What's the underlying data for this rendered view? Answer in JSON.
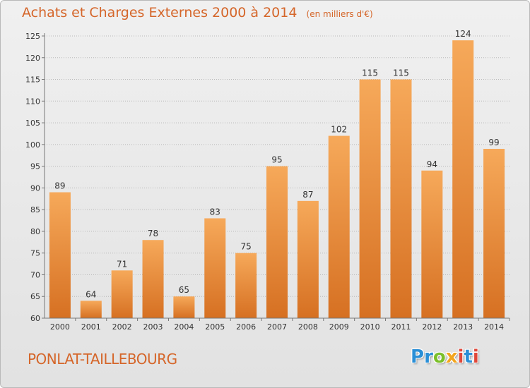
{
  "title": "Achats et Charges Externes 2000 à 2014",
  "subtitle": "(en milliers d'€)",
  "commune": "PONLAT-TAILLEBOURG",
  "logo": {
    "text": "Proxiti",
    "letters": [
      {
        "ch": "P",
        "color": "#2a8fd6"
      },
      {
        "ch": "r",
        "color": "#2a8fd6"
      },
      {
        "ch": "o",
        "color": "#7bbf2a"
      },
      {
        "ch": "x",
        "color": "#f2a51f"
      },
      {
        "ch": "i",
        "color": "#e0483a"
      },
      {
        "ch": "t",
        "color": "#2a8fd6"
      },
      {
        "ch": "i",
        "color": "#e0483a"
      }
    ]
  },
  "colors": {
    "bar_top": "#f6a95a",
    "bar_bottom": "#d67022",
    "accent": "#d5662a",
    "grid": "#b8b8b8"
  },
  "chart_data": {
    "type": "bar",
    "categories": [
      "2000",
      "2001",
      "2002",
      "2003",
      "2004",
      "2005",
      "2006",
      "2007",
      "2008",
      "2009",
      "2010",
      "2011",
      "2012",
      "2013",
      "2014"
    ],
    "values": [
      89,
      64,
      71,
      78,
      65,
      83,
      75,
      95,
      87,
      102,
      115,
      115,
      94,
      124,
      99
    ],
    "ylim": [
      60,
      125
    ],
    "yticks": [
      60,
      65,
      70,
      75,
      80,
      85,
      90,
      95,
      100,
      105,
      110,
      115,
      120,
      125
    ],
    "grid": true
  }
}
